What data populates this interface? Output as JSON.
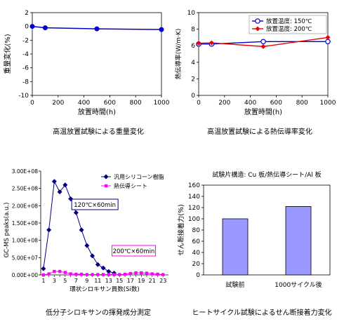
{
  "chart_data": [
    {
      "type": "line",
      "caption": "高温放置試験による重量変化",
      "xlabel": "放置時間(h)",
      "ylabel": "重量変化(%)",
      "xlim": [
        0,
        1000
      ],
      "ylim": [
        -10,
        2
      ],
      "xticks": [
        "0",
        "200",
        "400",
        "600",
        "800",
        "1000"
      ],
      "yticks": [
        "2",
        "0",
        "-2",
        "-4",
        "-6",
        "-8",
        "-10"
      ],
      "grid": false,
      "series": [
        {
          "x": [
            0,
            100,
            500,
            1000
          ],
          "y": [
            0,
            -0.2,
            -0.35,
            -0.45
          ],
          "color": "#0000cc",
          "marker": "circle-filled"
        }
      ]
    },
    {
      "type": "line",
      "caption": "高温放置試験による熱伝導率変化",
      "xlabel": "放置時間(h)",
      "ylabel": "熱伝導率(W/m·K)",
      "xlim": [
        0,
        1000
      ],
      "ylim": [
        0,
        10
      ],
      "xticks": [
        "0",
        "200",
        "400",
        "600",
        "800",
        "1000"
      ],
      "yticks": [
        "10",
        "8",
        "6",
        "4",
        "2",
        "0"
      ],
      "legend": "top-right",
      "grid": false,
      "series": [
        {
          "name": "放置温度: 150℃",
          "x": [
            0,
            100,
            500,
            1000
          ],
          "y": [
            6.2,
            6.2,
            6.5,
            6.5
          ],
          "color": "#0000cc",
          "marker": "circle-open"
        },
        {
          "name": "放置温度: 200℃",
          "x": [
            0,
            100,
            500,
            1000
          ],
          "y": [
            6.3,
            6.35,
            5.9,
            7.0
          ],
          "color": "#ee0000",
          "marker": "diamond-filled"
        }
      ]
    },
    {
      "type": "line",
      "caption": "低分子シロキサンの揮発成分測定",
      "xlabel": "環状シロキサン員数(Si数)",
      "ylabel": "GC-MS peaks(a.u.)",
      "xlim": [
        0,
        24
      ],
      "ylim": [
        0,
        300000000
      ],
      "xticks": [
        "1",
        "3",
        "5",
        "7",
        "9",
        "11",
        "13",
        "15",
        "17",
        "19",
        "21",
        "23"
      ],
      "yticks": [
        "3.00E+08",
        "2.50E+08",
        "2.00E+08",
        "1.50E+08",
        "1.00E+08",
        "5.00E+07",
        "0.00E+00"
      ],
      "legend": "top-right",
      "annotations": [
        "120℃×60min",
        "200℃×60min"
      ],
      "series": [
        {
          "name": "汎用シリコーン樹脂",
          "x": [
            1,
            2,
            3,
            4,
            5,
            6,
            7,
            8,
            9,
            10,
            11,
            12,
            13,
            14
          ],
          "y": [
            18000000,
            130000000,
            270000000,
            240000000,
            260000000,
            220000000,
            180000000,
            130000000,
            85000000,
            55000000,
            30000000,
            20000000,
            10000000,
            5000000
          ],
          "color": "#000080",
          "marker": "diamond-filled"
        },
        {
          "name": "熱伝導シート",
          "x": [
            1,
            2,
            3,
            4,
            5,
            6,
            7,
            8,
            9,
            10,
            11,
            12,
            13,
            14,
            15,
            16,
            17,
            18,
            19,
            20,
            21,
            22,
            23
          ],
          "y": [
            0,
            3000000,
            10000000,
            10000000,
            7000000,
            3000000,
            2000000,
            2000000,
            1000000,
            1000000,
            1000000,
            1000000,
            1000000,
            1000000,
            1000000,
            2000000,
            4000000,
            6000000,
            6000000,
            5000000,
            3000000,
            2000000,
            1000000
          ],
          "color": "#ff00ff",
          "marker": "square-filled"
        }
      ]
    },
    {
      "type": "bar",
      "caption": "ヒートサイクル試験によるせん断接着力変化",
      "title": "試験片構造: Cu 板/熱伝導シート/Al 板",
      "ylabel": "せん断接着力(%)",
      "ylim": [
        0,
        160
      ],
      "yticks": [
        "160",
        "140",
        "120",
        "100",
        "80",
        "60",
        "40",
        "20",
        "0"
      ],
      "categories": [
        "試験前",
        "1000サイクル後"
      ],
      "values": [
        100,
        122
      ],
      "bar_color": "#9999ff"
    }
  ]
}
